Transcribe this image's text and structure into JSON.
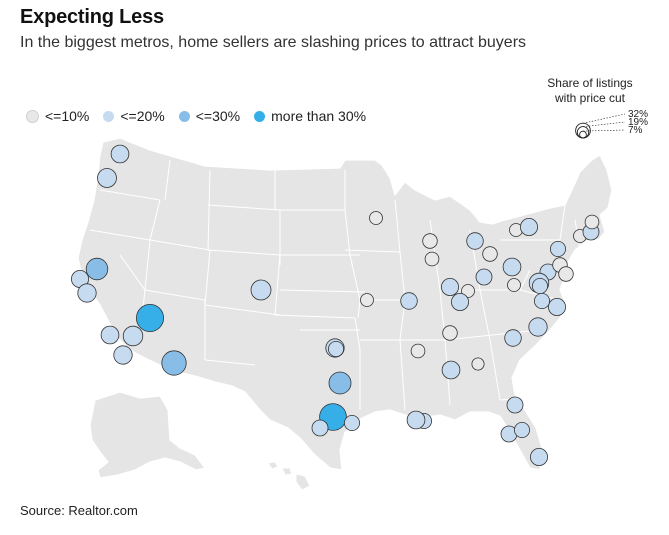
{
  "header": {
    "title": "Expecting Less",
    "subtitle": "In the biggest metros, home sellers are slashing prices to attract buyers"
  },
  "legend": {
    "items": [
      {
        "label": "<=10%",
        "color": "#e8e8e8"
      },
      {
        "label": "<=20%",
        "color": "#c6daf0"
      },
      {
        "label": "<=30%",
        "color": "#88bde8"
      },
      {
        "label": "more than 30%",
        "color": "#36aee8"
      }
    ]
  },
  "size_legend": {
    "title_line1": "Share of listings",
    "title_line2": "with price cut",
    "levels": [
      {
        "label": "32%",
        "value": 32
      },
      {
        "label": "19%",
        "value": 19
      },
      {
        "label": "7%",
        "value": 7
      }
    ]
  },
  "map": {
    "land_color": "#e5e5e5",
    "border_color": "#ffffff",
    "metros": [
      {
        "value": 15
      },
      {
        "value": 17
      },
      {
        "value": 22
      },
      {
        "value": 14
      },
      {
        "value": 16
      },
      {
        "value": 35
      },
      {
        "value": 18
      },
      {
        "value": 16
      },
      {
        "value": 15
      },
      {
        "value": 28
      },
      {
        "value": 19
      },
      {
        "value": 34
      },
      {
        "value": 12
      },
      {
        "value": 11
      },
      {
        "value": 16
      },
      {
        "value": 23
      },
      {
        "value": 8
      },
      {
        "value": 10
      },
      {
        "value": 9
      },
      {
        "value": 14
      },
      {
        "value": 8
      },
      {
        "value": 10
      },
      {
        "value": 12
      },
      {
        "value": 15
      },
      {
        "value": 13
      },
      {
        "value": 8
      },
      {
        "value": 14
      },
      {
        "value": 11
      },
      {
        "value": 12
      },
      {
        "value": 18
      },
      {
        "value": 10
      },
      {
        "value": 8
      },
      {
        "value": 12
      },
      {
        "value": 9
      },
      {
        "value": 14
      },
      {
        "value": 16
      },
      {
        "value": 13
      },
      {
        "value": 10
      },
      {
        "value": 13
      },
      {
        "value": 9
      },
      {
        "value": 8
      },
      {
        "value": 15
      },
      {
        "value": 7
      },
      {
        "value": 11
      },
      {
        "value": 12
      },
      {
        "value": 12
      },
      {
        "value": 11
      },
      {
        "value": 14
      },
      {
        "value": 11
      },
      {
        "value": 11
      },
      {
        "value": 8
      },
      {
        "value": 11
      },
      {
        "value": 15
      },
      {
        "value": 14
      },
      {
        "value": 10
      }
    ]
  },
  "source": "Source: Realtor.com"
}
